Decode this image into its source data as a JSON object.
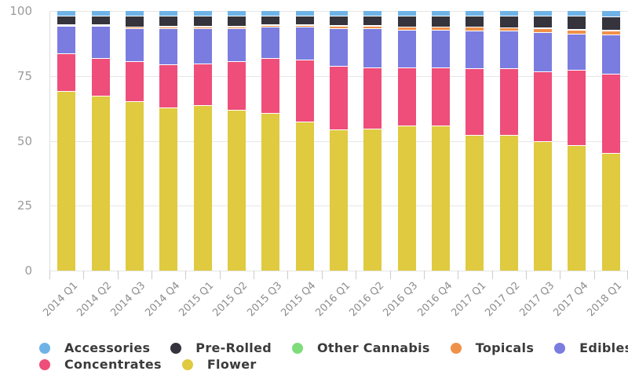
{
  "chart_data": {
    "type": "bar",
    "stacking": "percent",
    "title": "",
    "xlabel": "",
    "ylabel": "",
    "ylim": [
      0,
      100
    ],
    "y_ticks": [
      0,
      25,
      50,
      75,
      100
    ],
    "grid": true,
    "legend_position": "bottom",
    "categories": [
      "2014 Q1",
      "2014 Q2",
      "2014 Q3",
      "2014 Q4",
      "2015 Q1",
      "2015 Q2",
      "2015 Q3",
      "2015 Q4",
      "2016 Q1",
      "2016 Q2",
      "2016 Q3",
      "2016 Q4",
      "2017 Q1",
      "2017 Q2",
      "2017 Q3",
      "2017 Q4",
      "2018 Q1"
    ],
    "stack_order_note": "series listed top-of-stack first; Flower is the bottom segment",
    "series": [
      {
        "name": "Accessories",
        "color": "#6fb3e6",
        "values": [
          2,
          2,
          2,
          2,
          2,
          2,
          2,
          2,
          2,
          2,
          2,
          2,
          2,
          2,
          2,
          2,
          2.5
        ]
      },
      {
        "name": "Pre-Rolled",
        "color": "#35343d",
        "values": [
          3.5,
          3.5,
          4.3,
          4,
          4,
          4,
          3.5,
          3.5,
          3.8,
          3.8,
          4.3,
          4.3,
          4.3,
          4.5,
          4.8,
          5.3,
          5
        ]
      },
      {
        "name": "Other Cannabis",
        "color": "#7edd7a",
        "values": [
          0.2,
          0.2,
          0.2,
          0.3,
          0.2,
          0.2,
          0.2,
          0.2,
          0.2,
          0.2,
          0.2,
          0.2,
          0.2,
          0.2,
          0.2,
          0.2,
          0.3
        ]
      },
      {
        "name": "Topicals",
        "color": "#f0914a",
        "values": [
          0.3,
          0.3,
          0.5,
          0.7,
          0.8,
          0.8,
          0.8,
          0.8,
          1,
          1,
          1,
          1,
          1.5,
          1.3,
          1.5,
          1.5,
          1.7
        ]
      },
      {
        "name": "Edibles",
        "color": "#7b7ce0",
        "values": [
          10.5,
          12.5,
          12.5,
          14,
          13.5,
          12.5,
          12,
          12.5,
          14.5,
          15,
          14.5,
          14.5,
          14.5,
          14.5,
          15,
          14,
          15
        ]
      },
      {
        "name": "Concentrates",
        "color": "#ee4e79",
        "values": [
          14.5,
          14.5,
          15.5,
          16.5,
          16,
          19,
          21,
          24,
          24.5,
          23.5,
          22.5,
          22.5,
          25.5,
          25.5,
          27,
          29,
          30.5
        ]
      },
      {
        "name": "Flower",
        "color": "#dfca40",
        "values": [
          69,
          67,
          65,
          62.5,
          63.5,
          61.5,
          60.5,
          57,
          54,
          54.5,
          55.5,
          55.5,
          52,
          52,
          49.5,
          48,
          45
        ]
      }
    ],
    "legend_rows": [
      [
        0,
        1,
        2,
        3,
        4
      ],
      [
        5,
        6
      ]
    ]
  },
  "colors": {
    "gridline": "#e6e6e6",
    "axis_line": "#dedede",
    "tick": "#cccccc",
    "y_label_text": "#9b9b9b",
    "x_label_text": "#8d8d8d",
    "legend_text": "#3b3b3b",
    "background": "#ffffff"
  }
}
